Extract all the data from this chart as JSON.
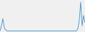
{
  "line_color": "#3a8fc7",
  "background_color": "#f0f0f0",
  "figsize": [
    1.2,
    0.45
  ],
  "dpi": 100,
  "x": [
    0,
    1,
    2,
    3,
    4,
    5,
    6,
    7,
    8,
    9,
    10,
    11,
    12,
    13,
    14,
    15,
    16,
    17,
    18,
    19,
    20,
    21,
    22,
    23,
    24,
    25,
    26,
    27,
    28,
    29,
    30,
    31,
    32,
    33,
    34,
    35,
    36,
    37,
    38,
    39,
    40,
    41,
    42,
    43,
    44,
    45,
    46,
    47,
    48,
    49,
    50,
    51,
    52,
    53,
    54,
    55,
    56,
    57,
    58,
    59
  ],
  "y": [
    0,
    500,
    1200,
    300,
    100,
    0,
    0,
    0,
    0,
    0,
    0,
    0,
    0,
    0,
    0,
    0,
    0,
    0,
    0,
    0,
    0,
    0,
    0,
    0,
    0,
    0,
    0,
    0,
    0,
    0,
    0,
    0,
    0,
    0,
    0,
    0,
    0,
    0,
    0,
    0,
    0,
    0,
    0,
    0,
    0,
    0,
    0,
    0,
    0,
    0,
    0,
    0,
    0,
    0,
    200,
    1000,
    2800,
    500,
    1500,
    800
  ],
  "ylim": [
    -100,
    3000
  ],
  "xlim": [
    0,
    59
  ]
}
